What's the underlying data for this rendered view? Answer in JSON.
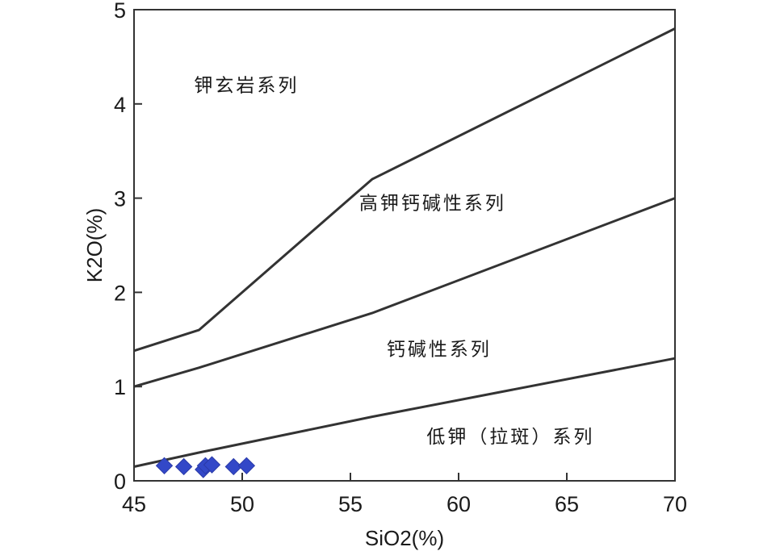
{
  "chart_data": {
    "type": "scatter",
    "xlabel": "SiO2(%)",
    "ylabel": "K2O(%)",
    "xlim": [
      45,
      70
    ],
    "ylim": [
      0,
      5
    ],
    "x_ticks": [
      45,
      50,
      55,
      60,
      65,
      70
    ],
    "y_ticks": [
      0,
      1,
      2,
      3,
      4,
      5
    ],
    "grid": false,
    "boundaries": [
      {
        "points": [
          [
            45,
            1.38
          ],
          [
            48,
            1.6
          ],
          [
            56,
            3.2
          ],
          [
            70,
            4.8
          ]
        ]
      },
      {
        "points": [
          [
            45,
            1.0
          ],
          [
            48,
            1.2
          ],
          [
            56,
            1.78
          ],
          [
            70,
            3.0
          ]
        ]
      },
      {
        "points": [
          [
            45,
            0.15
          ],
          [
            48,
            0.3
          ],
          [
            56,
            0.68
          ],
          [
            70,
            1.3
          ]
        ]
      }
    ],
    "regions": [
      {
        "label": "钾玄岩系列",
        "x": 50.2,
        "y": 4.2
      },
      {
        "label": "高钾钙碱性系列",
        "x": 58.8,
        "y": 2.95
      },
      {
        "label": "钙碱性系列",
        "x": 59.1,
        "y": 1.4
      },
      {
        "label": "低钾（拉斑）系列",
        "x": 62.4,
        "y": 0.47
      }
    ],
    "series": [
      {
        "marker": "diamond",
        "color": "#3348c8",
        "points": [
          [
            46.4,
            0.16
          ],
          [
            47.3,
            0.15
          ],
          [
            48.2,
            0.12
          ],
          [
            48.3,
            0.16
          ],
          [
            48.6,
            0.17
          ],
          [
            49.6,
            0.15
          ],
          [
            50.2,
            0.16
          ]
        ]
      }
    ]
  }
}
